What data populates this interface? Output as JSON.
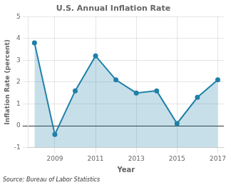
{
  "chart_data": {
    "type": "line",
    "title": "U.S. Annual Inflation Rate",
    "xlabel": "Year",
    "ylabel": "Inflation Rate (percent)",
    "x": [
      2008,
      2009,
      2010,
      2011,
      2012,
      2013,
      2014,
      2015,
      2016,
      2017
    ],
    "values": [
      3.8,
      -0.4,
      1.6,
      3.2,
      2.1,
      1.5,
      1.6,
      0.1,
      1.3,
      2.1
    ],
    "color": "#2080a8",
    "marker": "circle",
    "xlim": [
      2007.7,
      2017.3
    ],
    "xticks": [
      2009,
      2011,
      2013,
      2015,
      2017
    ],
    "ylim": [
      -1,
      5
    ],
    "yticks": [
      -1,
      0,
      1,
      2,
      3,
      4,
      5
    ],
    "grid": true,
    "annotations": [
      "Source: Bureau of Labor Statistics"
    ]
  }
}
